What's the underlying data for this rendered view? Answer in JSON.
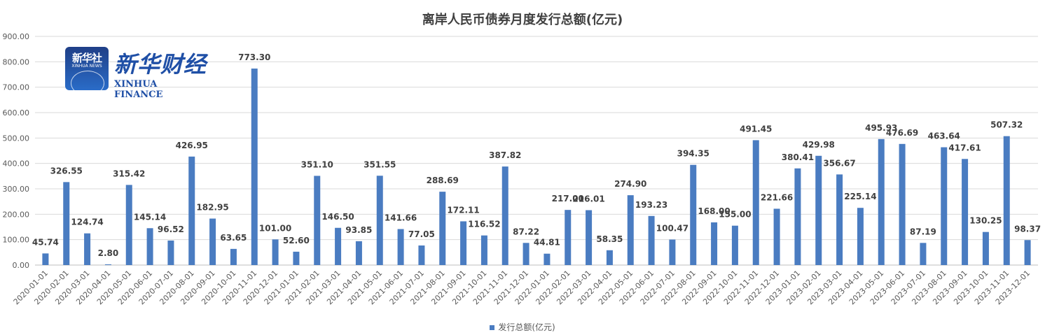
{
  "chart_data": {
    "type": "bar",
    "title": "离岸人民币债券月度发行总额(亿元)",
    "xlabel": "",
    "ylabel": "",
    "ylim": [
      0,
      900
    ],
    "yticks": [
      "0.00",
      "100.00",
      "200.00",
      "300.00",
      "400.00",
      "500.00",
      "600.00",
      "700.00",
      "800.00",
      "900.00"
    ],
    "grid": true,
    "legend_position": "bottom",
    "bar_color": "#4a7cc1",
    "categories": [
      "2020-01-01",
      "2020-02-01",
      "2020-03-01",
      "2020-04-01",
      "2020-05-01",
      "2020-06-01",
      "2020-07-01",
      "2020-08-01",
      "2020-09-01",
      "2020-10-01",
      "2020-11-01",
      "2020-12-01",
      "2021-01-01",
      "2021-02-01",
      "2021-03-01",
      "2021-04-01",
      "2021-05-01",
      "2021-06-01",
      "2021-07-01",
      "2021-08-01",
      "2021-09-01",
      "2021-10-01",
      "2021-11-01",
      "2021-12-01",
      "2022-01-01",
      "2022-02-01",
      "2022-03-01",
      "2022-04-01",
      "2022-05-01",
      "2022-06-01",
      "2022-07-01",
      "2022-08-01",
      "2022-09-01",
      "2022-10-01",
      "2022-11-01",
      "2022-12-01",
      "2023-01-01",
      "2023-02-01",
      "2023-03-01",
      "2023-04-01",
      "2023-05-01",
      "2023-06-01",
      "2023-07-01",
      "2023-08-01",
      "2023-09-01",
      "2023-10-01",
      "2023-11-01",
      "2023-12-01"
    ],
    "series": [
      {
        "name": "发行总额(亿元)",
        "values": [
          45.74,
          326.55,
          124.74,
          2.8,
          315.42,
          145.14,
          96.52,
          426.95,
          182.95,
          63.65,
          773.3,
          101.0,
          52.6,
          351.1,
          146.5,
          93.85,
          351.55,
          141.66,
          77.05,
          288.69,
          172.11,
          116.52,
          387.82,
          87.22,
          44.81,
          217.0,
          216.01,
          58.35,
          274.9,
          193.23,
          100.47,
          394.35,
          168.0,
          155.0,
          491.45,
          221.66,
          380.41,
          429.98,
          356.67,
          225.14,
          495.93,
          476.69,
          87.19,
          463.64,
          417.61,
          130.25,
          507.32,
          98.37
        ],
        "labels": [
          "45.74",
          "326.55",
          "124.74",
          "2.80",
          "315.42",
          "145.14",
          "96.52",
          "426.95",
          "182.95",
          "63.65",
          "773.30",
          "101.00",
          "52.60",
          "351.10",
          "146.50",
          "93.85",
          "351.55",
          "141.66",
          "77.05",
          "288.69",
          "172.11",
          "116.52",
          "387.82",
          "87.22",
          "44.81",
          "217.00",
          "216.01",
          "58.35",
          "274.90",
          "193.23",
          "100.47",
          "394.35",
          "168.00",
          "155.00",
          "491.45",
          "221.66",
          "380.41",
          "429.98",
          "356.67",
          "225.14",
          "495.93",
          "476.69",
          "87.19",
          "463.64",
          "417.61",
          "130.25",
          "507.32",
          "98.37"
        ]
      }
    ]
  },
  "logo": {
    "badge_cn": "新华社",
    "badge_en": "XINHUA NEWS",
    "script": "新华财经",
    "name": "XINHUA FINANCE"
  },
  "legend": {
    "label": "发行总额(亿元)"
  }
}
